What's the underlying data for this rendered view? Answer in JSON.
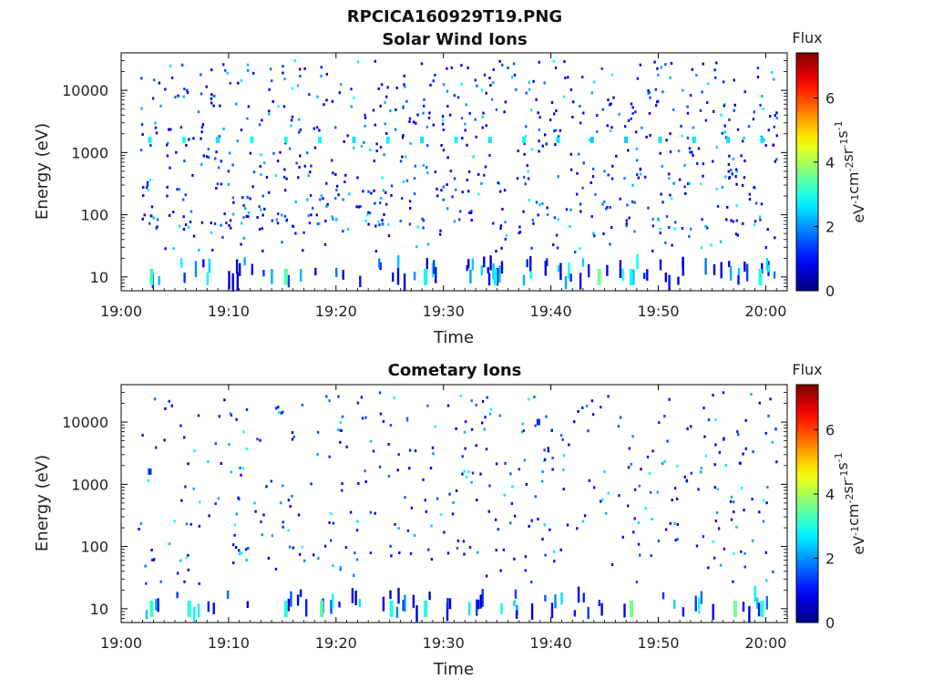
{
  "figure": {
    "title": "RPCICA160929T19.PNG"
  },
  "panels": [
    {
      "id": "solar",
      "title": "Solar Wind Ions",
      "xlabel": "Time",
      "ylabel": "Energy (eV)",
      "colorbar_title": "Flux",
      "colorbar_units": "eV-1cm-2sr-1s-1"
    },
    {
      "id": "cometary",
      "title": "Cometary Ions",
      "xlabel": "Time",
      "ylabel": "Energy (eV)",
      "colorbar_title": "Flux",
      "colorbar_units": "eV-1cm-2sr-1s-1"
    }
  ],
  "chart_data": [
    {
      "type": "heatmap",
      "title": "Solar Wind Ions",
      "xlabel": "Time",
      "ylabel": "Energy (eV)",
      "x_range": [
        "19:00",
        "20:02"
      ],
      "x_ticks": [
        "19:00",
        "19:10",
        "19:20",
        "19:30",
        "19:40",
        "19:50",
        "20:00"
      ],
      "y_scale": "log",
      "y_range": [
        6,
        40000
      ],
      "y_ticks": [
        10,
        100,
        1000,
        10000
      ],
      "y_tick_labels": [
        "10",
        "100",
        "1000",
        "10000"
      ],
      "colorbar": {
        "label": "Flux",
        "units": "eV-1cm-2sr-1s-1",
        "range": [
          0,
          7.4
        ],
        "ticks": [
          0,
          2,
          4,
          6
        ],
        "colormap": "jet"
      },
      "grid": false,
      "data_note_points": [
        {
          "t": "19:02:40",
          "E": 1600,
          "flux": 2.8
        },
        {
          "t": "19:05:50",
          "E": 1600,
          "flux": 3.0
        },
        {
          "t": "19:09:00",
          "E": 1600,
          "flux": 2.6
        },
        {
          "t": "19:12:10",
          "E": 1600,
          "flux": 2.8
        },
        {
          "t": "19:15:20",
          "E": 1600,
          "flux": 3.0
        },
        {
          "t": "19:18:30",
          "E": 1600,
          "flux": 2.8
        },
        {
          "t": "19:21:40",
          "E": 1600,
          "flux": 2.6
        },
        {
          "t": "19:24:50",
          "E": 1600,
          "flux": 2.8
        },
        {
          "t": "19:28:00",
          "E": 1600,
          "flux": 2.6
        },
        {
          "t": "19:31:10",
          "E": 1600,
          "flux": 2.8
        },
        {
          "t": "19:34:20",
          "E": 1600,
          "flux": 2.6
        },
        {
          "t": "19:37:30",
          "E": 1600,
          "flux": 2.8
        },
        {
          "t": "19:40:40",
          "E": 1600,
          "flux": 2.6
        },
        {
          "t": "19:43:50",
          "E": 1600,
          "flux": 2.4
        },
        {
          "t": "19:47:00",
          "E": 1600,
          "flux": 2.4
        },
        {
          "t": "19:50:10",
          "E": 1600,
          "flux": 2.6
        },
        {
          "t": "19:53:20",
          "E": 1600,
          "flux": 2.6
        },
        {
          "t": "19:56:30",
          "E": 1600,
          "flux": 2.6
        },
        {
          "t": "19:59:40",
          "E": 1600,
          "flux": 2.6
        },
        {
          "t": "19:44:30",
          "E": 10,
          "flux": 3.6
        },
        {
          "t": "19:15:20",
          "E": 10,
          "flux": 3.4
        },
        {
          "t": "19:02:50",
          "E": 10,
          "flux": 3.2
        },
        {
          "t": "19:28:20",
          "E": 10,
          "flux": 2.8
        },
        {
          "t": "19:34:50",
          "E": 10,
          "flux": 2.8
        },
        {
          "t": "19:47:30",
          "E": 10,
          "flux": 2.8
        },
        {
          "t": "19:59:30",
          "E": 10,
          "flux": 3.0
        }
      ]
    },
    {
      "type": "heatmap",
      "title": "Cometary Ions",
      "xlabel": "Time",
      "ylabel": "Energy (eV)",
      "x_range": [
        "19:00",
        "20:02"
      ],
      "x_ticks": [
        "19:00",
        "19:10",
        "19:20",
        "19:30",
        "19:40",
        "19:50",
        "20:00"
      ],
      "y_scale": "log",
      "y_range": [
        6,
        40000
      ],
      "y_ticks": [
        10,
        100,
        1000,
        10000
      ],
      "y_tick_labels": [
        "10",
        "100",
        "1000",
        "10000"
      ],
      "colorbar": {
        "label": "Flux",
        "units": "eV-1cm-2sr-1s-1",
        "range": [
          0,
          7.4
        ],
        "ticks": [
          0,
          2,
          4,
          6
        ],
        "colormap": "jet"
      },
      "grid": false,
      "data_note_points": [
        {
          "t": "19:02:50",
          "E": 10,
          "flux": 3.2
        },
        {
          "t": "19:06:20",
          "E": 10,
          "flux": 3.0
        },
        {
          "t": "19:15:20",
          "E": 10,
          "flux": 3.0
        },
        {
          "t": "19:18:40",
          "E": 10,
          "flux": 3.4
        },
        {
          "t": "19:25:10",
          "E": 10,
          "flux": 3.0
        },
        {
          "t": "19:28:20",
          "E": 10,
          "flux": 3.0
        },
        {
          "t": "19:47:30",
          "E": 10,
          "flux": 3.6
        },
        {
          "t": "19:57:10",
          "E": 10,
          "flux": 3.6
        },
        {
          "t": "19:59:40",
          "E": 10,
          "flux": 3.0
        },
        {
          "t": "19:02:40",
          "E": 1600,
          "flux": 1.2
        },
        {
          "t": "19:38:50",
          "E": 10000,
          "flux": 1.2
        }
      ]
    }
  ]
}
